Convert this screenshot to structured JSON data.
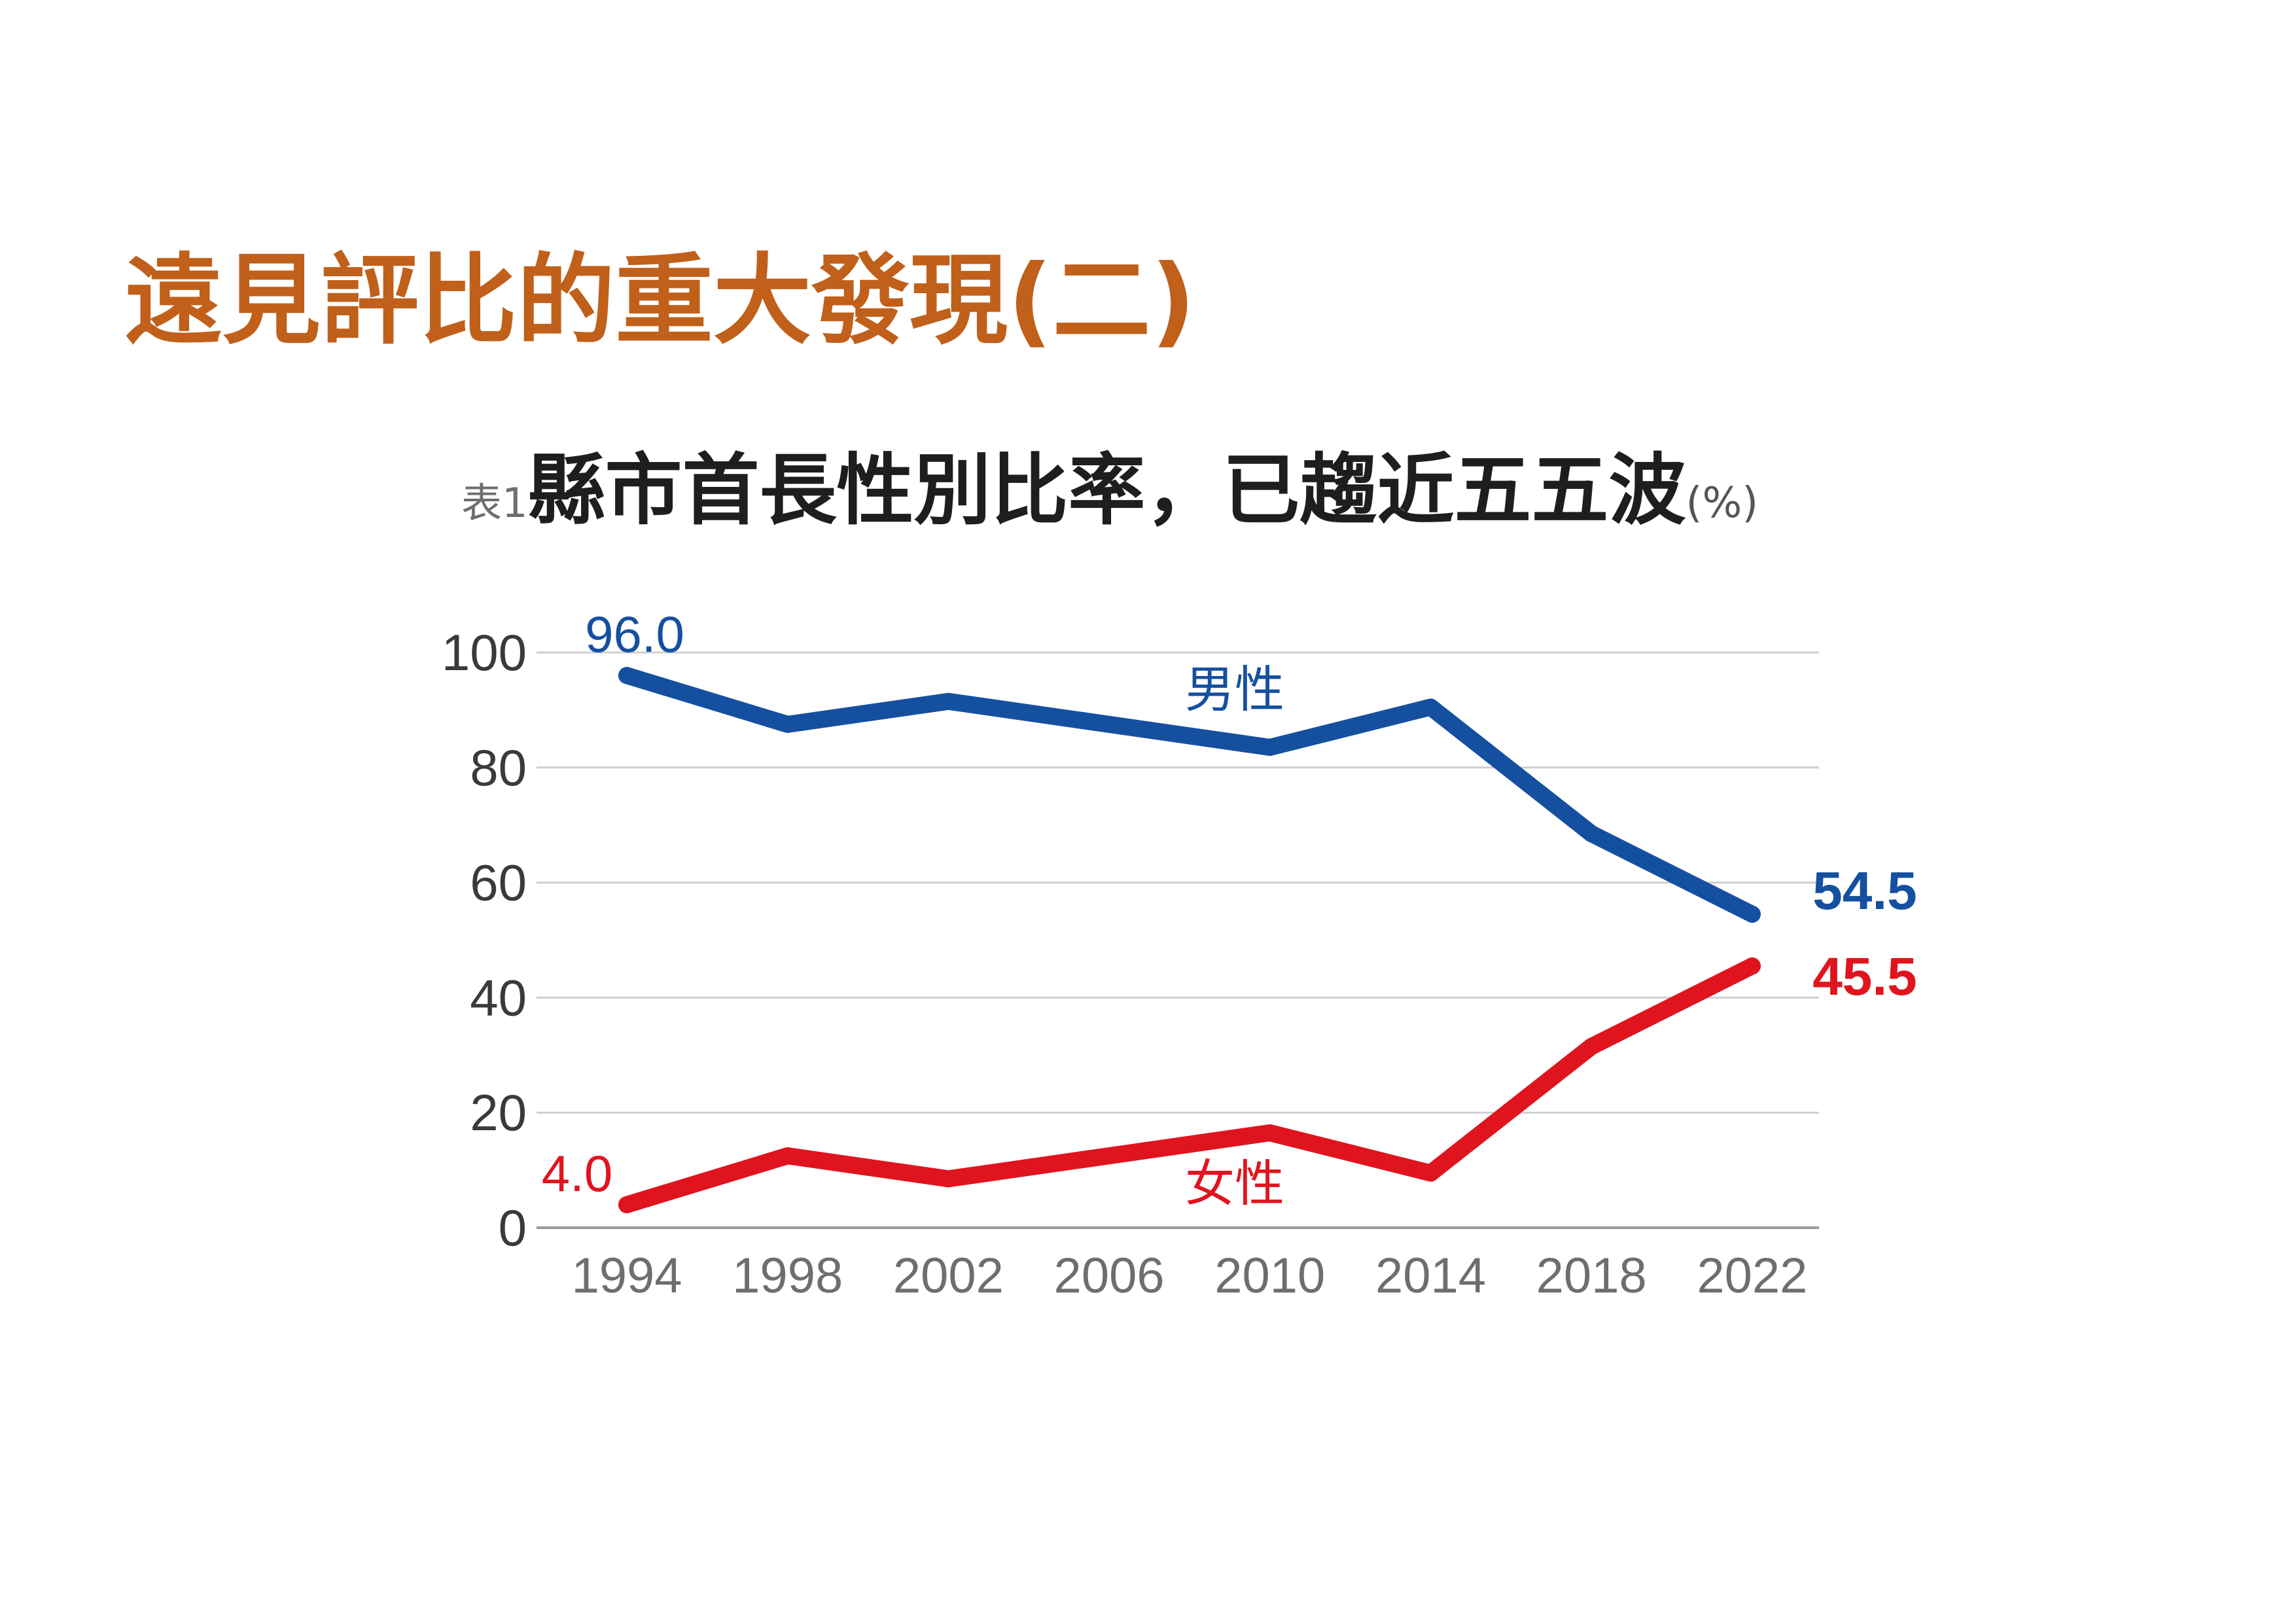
{
  "page": {
    "title": "遠見評比的重大發現(二)",
    "title_color": "#C0601A"
  },
  "chart_data": {
    "type": "line",
    "tag": "表1",
    "title": "縣市首長性別比率，已趨近五五波",
    "unit": "(%)",
    "x": [
      "1994",
      "1998",
      "2002",
      "2006",
      "2010",
      "2014",
      "2018",
      "2022"
    ],
    "ylim": [
      0,
      100
    ],
    "yticks": [
      "0",
      "20",
      "40",
      "60",
      "80",
      "100"
    ],
    "grid": true,
    "series": [
      {
        "name": "男性",
        "color": "#1550A0",
        "values": [
          96.0,
          87.5,
          91.5,
          87.5,
          83.5,
          90.5,
          68.5,
          54.5
        ],
        "start_label": "96.0",
        "end_label": "54.5"
      },
      {
        "name": "女性",
        "color": "#E0141E",
        "values": [
          4.0,
          12.5,
          8.5,
          12.5,
          16.5,
          9.5,
          31.5,
          45.5
        ],
        "start_label": "4.0",
        "end_label": "45.5"
      }
    ]
  }
}
